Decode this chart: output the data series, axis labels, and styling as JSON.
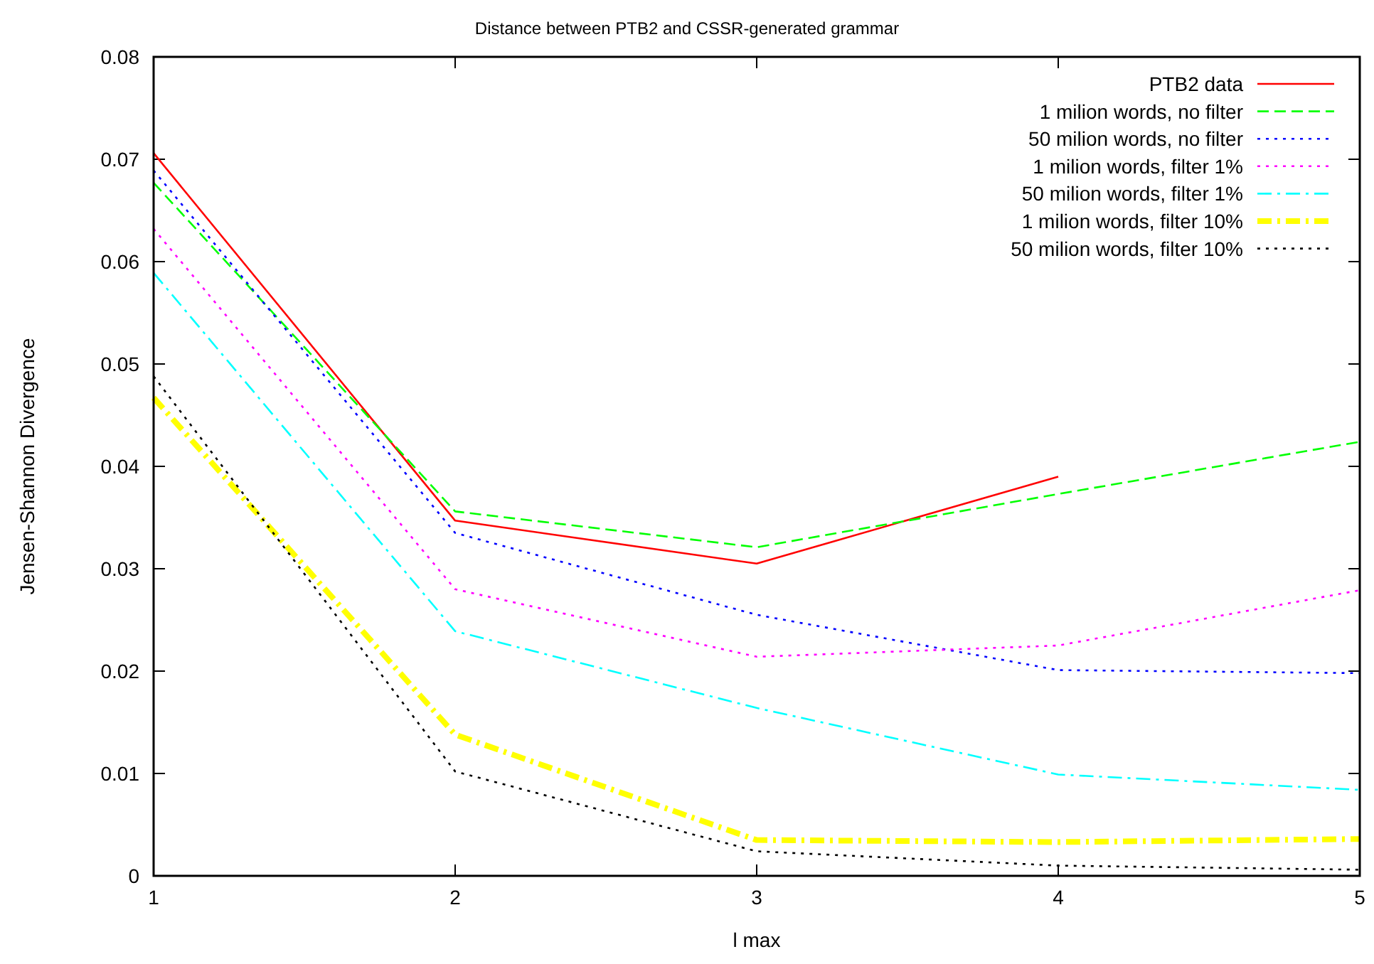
{
  "chart_data": {
    "type": "line",
    "title": "Distance between PTB2 and CSSR-generated grammar",
    "xlabel": "l max",
    "ylabel": "Jensen-Shannon Divergence",
    "x": [
      1,
      2,
      3,
      4,
      5
    ],
    "xlim": [
      1,
      5
    ],
    "xticks": [
      1,
      2,
      3,
      4,
      5
    ],
    "ylim": [
      0,
      0.08
    ],
    "yticks": [
      0,
      0.01,
      0.02,
      0.03,
      0.04,
      0.05,
      0.06,
      0.07,
      0.08
    ],
    "grid": false,
    "legend": "top right",
    "marker": "none",
    "series": [
      {
        "name": "PTB2 data",
        "color": "#ff0000",
        "line_style": "solid",
        "x": [
          1,
          2,
          3,
          4
        ],
        "values": [
          0.0706,
          0.0347,
          0.0305,
          0.039
        ]
      },
      {
        "name": "1 milion words, no filter",
        "color": "#00ff00",
        "line_style": "dashed",
        "values": [
          0.0677,
          0.0356,
          0.0321,
          0.0373,
          0.0424
        ]
      },
      {
        "name": "50 milion words, no filter",
        "color": "#0000ff",
        "line_style": "dotted",
        "values": [
          0.0689,
          0.0335,
          0.0255,
          0.0201,
          0.0198
        ]
      },
      {
        "name": "1 milion words, filter 1%",
        "color": "#ff00ff",
        "line_style": "dotted",
        "values": [
          0.0632,
          0.028,
          0.0214,
          0.0225,
          0.0279
        ]
      },
      {
        "name": "50 milion words, filter 1%",
        "color": "#00ffff",
        "line_style": "dashdot",
        "values": [
          0.0589,
          0.0239,
          0.0164,
          0.0099,
          0.0084
        ]
      },
      {
        "name": "1 milion words, filter 10%",
        "color": "#ffff00",
        "line_style": "dashdot",
        "values": [
          0.0467,
          0.0138,
          0.0035,
          0.0033,
          0.0036
        ]
      },
      {
        "name": "50 milion words, filter 10%",
        "color": "#000000",
        "line_style": "dotted",
        "values": [
          0.0488,
          0.0102,
          0.0024,
          0.001,
          0.0006
        ]
      }
    ]
  }
}
